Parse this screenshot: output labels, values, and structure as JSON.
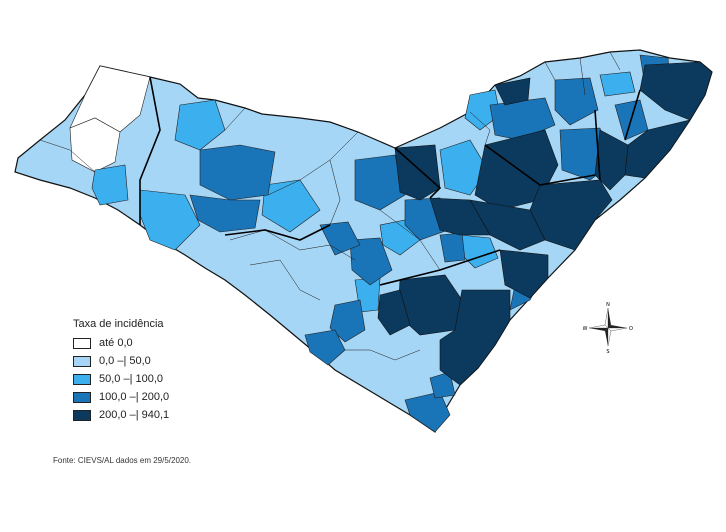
{
  "legend": {
    "title": "Taxa de incidência",
    "classes": [
      {
        "label": "até 0,0",
        "color": "#ffffff"
      },
      {
        "label": "0,0 –| 50,0",
        "color": "#a6d6f5"
      },
      {
        "label": "50,0 –| 100,0",
        "color": "#3cb0ee"
      },
      {
        "label": "100,0 –| 200,0",
        "color": "#1a74b8"
      },
      {
        "label": "200,0 –| 940,1",
        "color": "#0b3a5e"
      }
    ]
  },
  "source": "Fonte: CIEVS/AL dados em 29/5/2020.",
  "compass": {
    "n": "N",
    "s": "S",
    "e": "O",
    "w": "W"
  }
}
